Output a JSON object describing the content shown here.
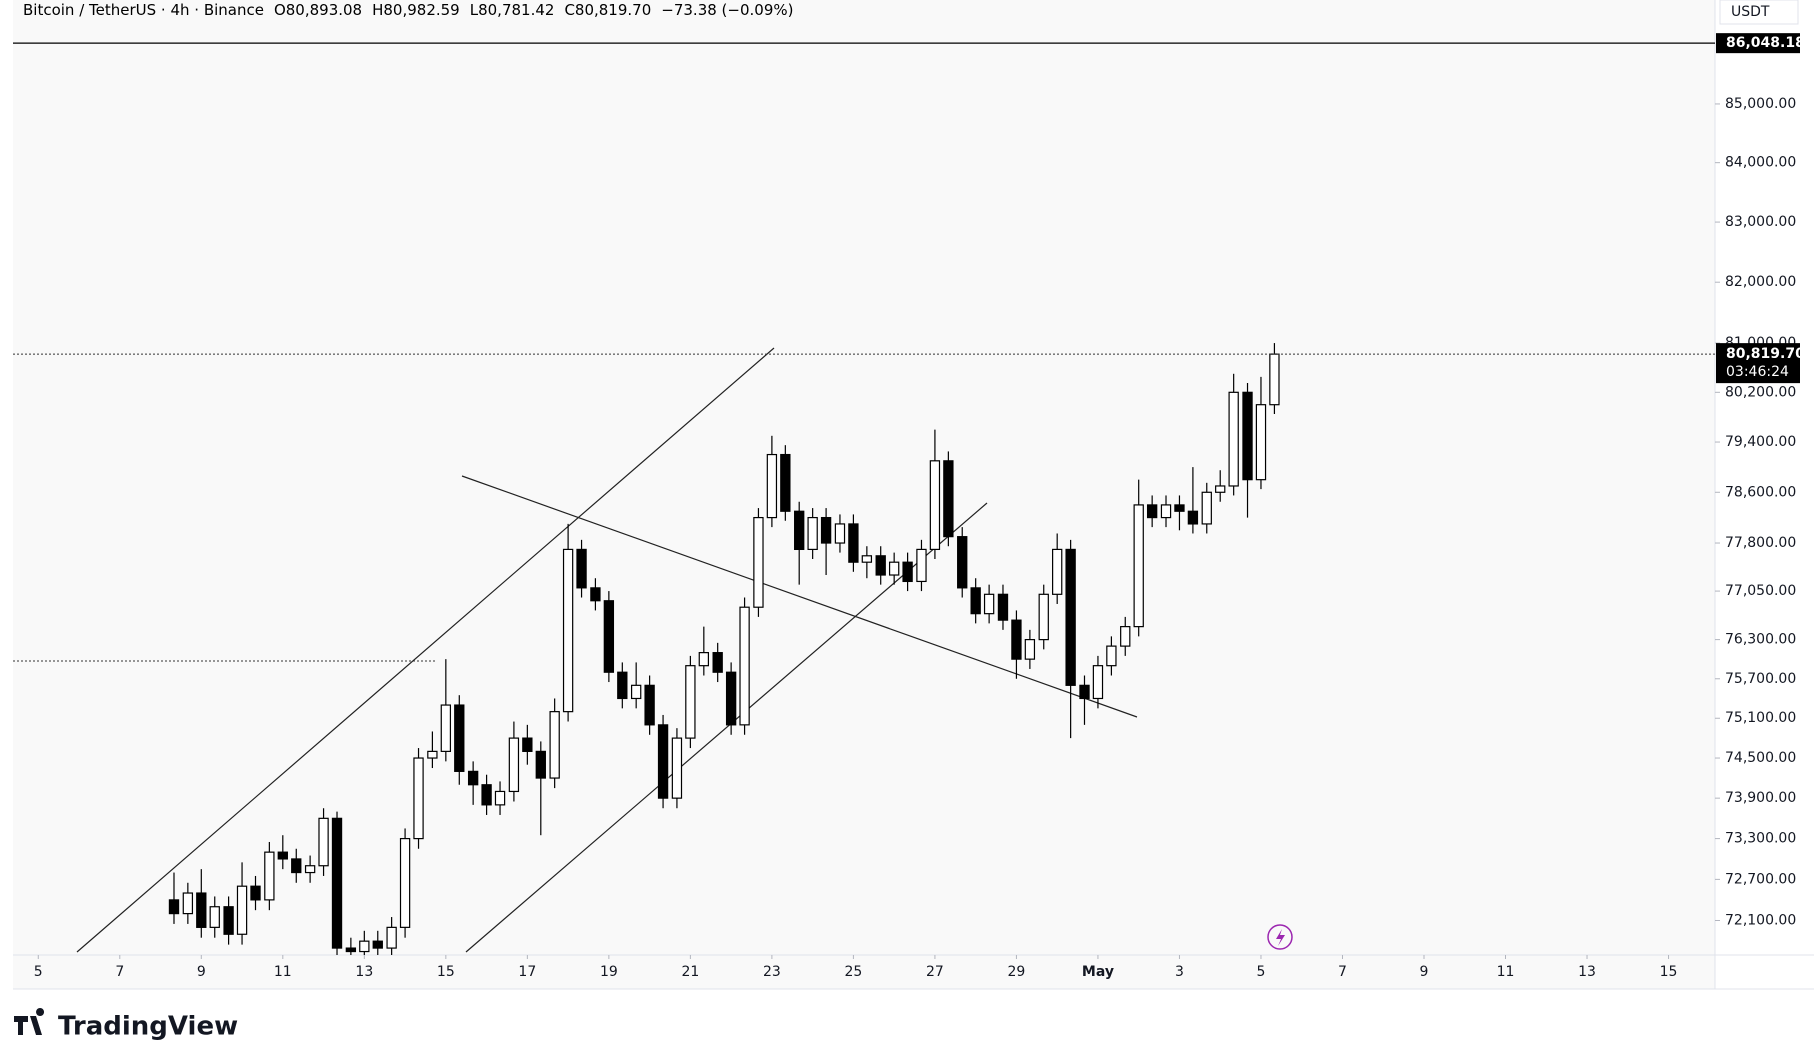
{
  "chart_data": {
    "type": "candlestick",
    "title": "Bitcoin / TetherUS · 4h · Binance",
    "legend_text": [
      "O80,893.08",
      "H80,982.59",
      "L80,781.42",
      "C80,819.70",
      "−73.38 (−0.09%)"
    ],
    "currency": "USDT",
    "log_scale": true,
    "up_color": "#ffffff",
    "down_color": "#000000",
    "outline_color": "#000000",
    "x": [
      8.33,
      8.67,
      9,
      9.33,
      9.67,
      10,
      10.33,
      10.67,
      11,
      11.33,
      11.67,
      12,
      12.33,
      12.67,
      13,
      13.33,
      13.67,
      14,
      14.33,
      14.67,
      15,
      15.33,
      15.67,
      16,
      16.33,
      16.67,
      17,
      17.33,
      17.67,
      18,
      18.33,
      18.67,
      19,
      19.33,
      19.67,
      20,
      20.33,
      20.67,
      21,
      21.33,
      21.67,
      22,
      22.33,
      22.67,
      23,
      23.33,
      23.67,
      24,
      24.33,
      24.67,
      25,
      25.33,
      25.67,
      26,
      26.33,
      26.67,
      27,
      27.33,
      27.67,
      28,
      28.33,
      28.67,
      29,
      29.33,
      29.67,
      30,
      30.33,
      30.67,
      31,
      31.33,
      31.67,
      32,
      32.33,
      32.67,
      33,
      33.33,
      33.67,
      34,
      34.33,
      34.67,
      35,
      35.33
    ],
    "open": [
      72400,
      72200,
      72500,
      72000,
      72300,
      71900,
      72600,
      72400,
      73100,
      73000,
      72800,
      72900,
      73600,
      71700,
      71650,
      71800,
      71700,
      72000,
      73300,
      74500,
      74600,
      75300,
      74300,
      74100,
      73800,
      74000,
      74800,
      74600,
      74200,
      75200,
      77700,
      77100,
      76900,
      75800,
      75400,
      75600,
      75000,
      73900,
      74800,
      75900,
      76100,
      75800,
      75000,
      76800,
      78200,
      79200,
      78300,
      77700,
      78200,
      77800,
      78100,
      77500,
      77600,
      77300,
      77500,
      77200,
      77700,
      79100,
      77900,
      77100,
      76700,
      77000,
      76600,
      76000,
      76300,
      77000,
      77700,
      75600,
      75400,
      75900,
      76200,
      76500,
      78400,
      78200,
      78400,
      78300,
      78100,
      78600,
      78700,
      80200,
      78800,
      80000
    ],
    "high": [
      72800,
      72650,
      72850,
      72450,
      72450,
      72950,
      72750,
      73250,
      73350,
      73150,
      73050,
      73750,
      73700,
      71850,
      71950,
      71950,
      72150,
      73450,
      74650,
      74900,
      76000,
      75450,
      74450,
      74250,
      74150,
      75050,
      75000,
      74750,
      75400,
      78100,
      77850,
      77250,
      77050,
      75950,
      75950,
      75750,
      75150,
      74950,
      76050,
      76500,
      76250,
      75950,
      76950,
      78350,
      79500,
      79350,
      78450,
      78350,
      78350,
      78250,
      78250,
      77750,
      77750,
      77650,
      77650,
      77850,
      79600,
      79250,
      78050,
      77250,
      77150,
      77150,
      76750,
      76450,
      77150,
      77950,
      77850,
      75750,
      76050,
      76350,
      76650,
      78800,
      78550,
      78550,
      78550,
      79000,
      78750,
      78950,
      80500,
      80350,
      80450,
      81000
    ],
    "low": [
      72050,
      72050,
      71850,
      71850,
      71750,
      71750,
      72250,
      72250,
      72850,
      72650,
      72650,
      72750,
      71600,
      71600,
      71600,
      71600,
      71600,
      71850,
      73150,
      74350,
      74450,
      74100,
      73800,
      73650,
      73650,
      73850,
      74400,
      73350,
      74050,
      75050,
      76950,
      76750,
      75650,
      75250,
      75250,
      74850,
      73750,
      73750,
      74650,
      75750,
      75650,
      74850,
      74850,
      76650,
      78050,
      78150,
      77150,
      77550,
      77300,
      77650,
      77350,
      77250,
      77150,
      77150,
      77050,
      77050,
      77550,
      77750,
      76950,
      76550,
      76550,
      76450,
      75700,
      75850,
      76150,
      76850,
      74800,
      75000,
      75250,
      75750,
      76050,
      76350,
      78050,
      78050,
      78000,
      77950,
      77950,
      78450,
      78550,
      78200,
      78650,
      79850
    ],
    "close": [
      72200,
      72500,
      72000,
      72300,
      71900,
      72600,
      72400,
      73100,
      73000,
      72800,
      72900,
      73600,
      71700,
      71650,
      71800,
      71700,
      72000,
      73300,
      74500,
      74600,
      75300,
      74300,
      74100,
      73800,
      74000,
      74800,
      74600,
      74200,
      75200,
      77700,
      77100,
      76900,
      75800,
      75400,
      75600,
      75000,
      73900,
      74800,
      75900,
      76100,
      75800,
      75000,
      76800,
      78200,
      79200,
      78300,
      77700,
      78200,
      77800,
      78100,
      77500,
      77600,
      77300,
      77500,
      77200,
      77700,
      79100,
      77900,
      77100,
      76700,
      77000,
      76600,
      76000,
      76300,
      77000,
      77700,
      75600,
      75400,
      75900,
      76200,
      76500,
      78400,
      78200,
      78400,
      78300,
      78100,
      78600,
      78700,
      80200,
      78800,
      80000,
      80820
    ],
    "xlim": [
      4.38,
      46.14
    ],
    "xticks": [
      5,
      7,
      9,
      11,
      13,
      15,
      17,
      19,
      21,
      23,
      25,
      27,
      29,
      {
        "value": 31,
        "label": "May"
      },
      {
        "value": 33,
        "label": "3"
      },
      {
        "value": 35,
        "label": "5"
      },
      {
        "value": 37,
        "label": "7"
      },
      {
        "value": 39,
        "label": "9"
      },
      {
        "value": 41,
        "label": "11"
      },
      {
        "value": 43,
        "label": "13"
      },
      {
        "value": 45,
        "label": "15"
      }
    ],
    "ylim": [
      71600,
      86800
    ],
    "yticks": [
      {
        "value": 72100,
        "label": "72,100.00"
      },
      {
        "value": 72700,
        "label": "72,700.00"
      },
      {
        "value": 73300,
        "label": "73,300.00"
      },
      {
        "value": 73900,
        "label": "73,900.00"
      },
      {
        "value": 74500,
        "label": "74,500.00"
      },
      {
        "value": 75100,
        "label": "75,100.00"
      },
      {
        "value": 75700,
        "label": "75,700.00"
      },
      {
        "value": 76300,
        "label": "76,300.00"
      },
      {
        "value": 77050,
        "label": "77,050.00"
      },
      {
        "value": 77800,
        "label": "77,800.00"
      },
      {
        "value": 78600,
        "label": "78,600.00"
      },
      {
        "value": 79400,
        "label": "79,400.00"
      },
      {
        "value": 80200,
        "label": "80,200.00"
      },
      {
        "value": 81000,
        "label": "81,000.00"
      },
      {
        "value": 82000,
        "label": "82,000.00"
      },
      {
        "value": 83000,
        "label": "83,000.00"
      },
      {
        "value": 84000,
        "label": "84,000.00"
      },
      {
        "value": 85000,
        "label": "85,000.00"
      }
    ],
    "last_price": {
      "value": 80819.7,
      "label": "80,819.70"
    },
    "countdown": "03:46:24",
    "high_level": {
      "value": 86048.18,
      "label": "86,048.18"
    }
  },
  "brand": "TradingView"
}
